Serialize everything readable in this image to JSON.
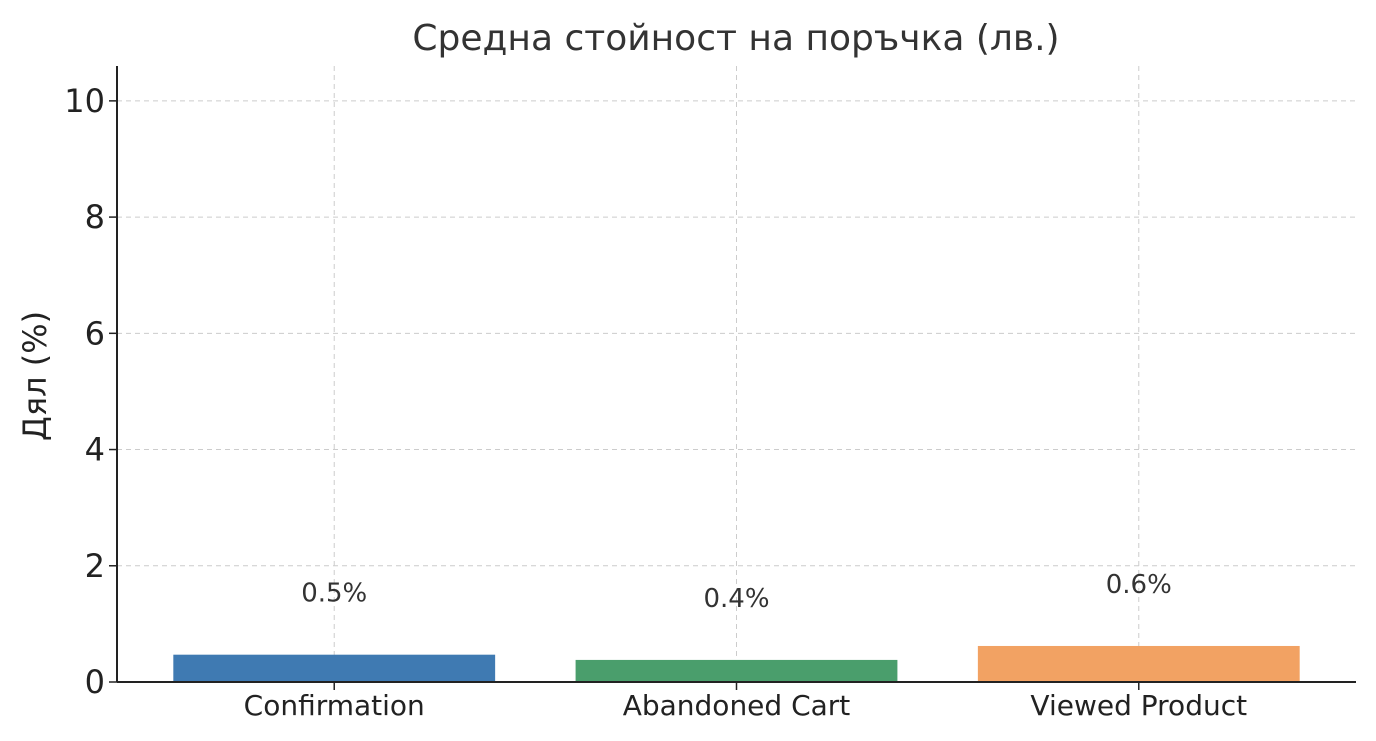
{
  "chart_data": {
    "type": "bar",
    "title": "Средна стойност на поръчка (лв.)",
    "xlabel": "",
    "ylabel": "Дял (%)",
    "categories": [
      "Confirmation",
      "Abandoned Cart",
      "Viewed Product"
    ],
    "values": [
      0.47,
      0.38,
      0.62
    ],
    "data_labels": [
      "0.5%",
      "0.4%",
      "0.6%"
    ],
    "colors": [
      "#3f7ab2",
      "#4a9e6c",
      "#f2a263"
    ],
    "ylim": [
      0,
      10.6
    ],
    "yticks": [
      0,
      2,
      4,
      6,
      8,
      10
    ],
    "grid": true,
    "legend": "none"
  }
}
